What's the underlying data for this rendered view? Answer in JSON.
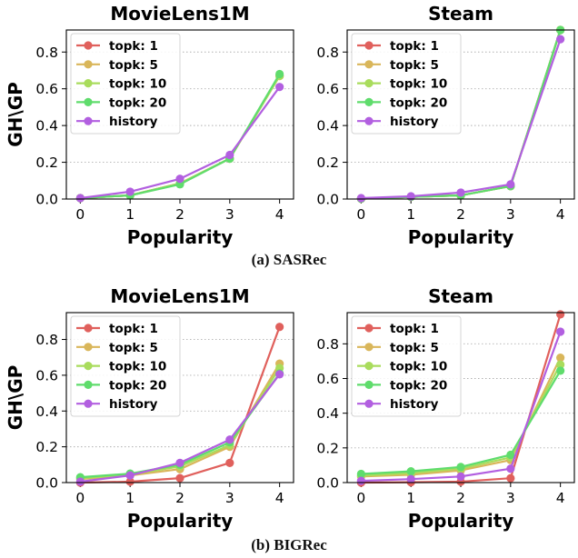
{
  "captions": [
    "(a) SASRec",
    "(b) BIGRec"
  ],
  "colors": {
    "topk: 1": "#e0605c",
    "topk: 5": "#d9b65a",
    "topk: 10": "#a9dc5c",
    "topk: 20": "#5fdc6c",
    "history": "#b25fe0"
  },
  "chart_data": [
    {
      "type": "line",
      "title": "MovieLens1M",
      "xlabel": "Popularity",
      "ylabel": "GH\\GP",
      "x": [
        0,
        1,
        2,
        3,
        4
      ],
      "ylim": [
        0,
        0.92
      ],
      "yticks": [
        0.0,
        0.2,
        0.4,
        0.6,
        0.8
      ],
      "grid": "horizontal dotted",
      "legend": "upper left",
      "series": [
        {
          "name": "topk: 1",
          "values": [
            0.005,
            0.02,
            0.085,
            0.22,
            0.67
          ]
        },
        {
          "name": "topk: 5",
          "values": [
            0.005,
            0.02,
            0.085,
            0.22,
            0.67
          ]
        },
        {
          "name": "topk: 10",
          "values": [
            0.005,
            0.02,
            0.085,
            0.22,
            0.67
          ]
        },
        {
          "name": "topk: 20",
          "values": [
            0.005,
            0.02,
            0.08,
            0.22,
            0.68
          ]
        },
        {
          "name": "history",
          "values": [
            0.005,
            0.04,
            0.11,
            0.24,
            0.61
          ]
        }
      ]
    },
    {
      "type": "line",
      "title": "Steam",
      "xlabel": "Popularity",
      "ylabel": "",
      "x": [
        0,
        1,
        2,
        3,
        4
      ],
      "ylim": [
        0,
        0.92
      ],
      "yticks": [
        0.0,
        0.2,
        0.4,
        0.6,
        0.8
      ],
      "grid": "horizontal dotted",
      "legend": "upper left",
      "series": [
        {
          "name": "topk: 1",
          "values": [
            0.002,
            0.012,
            0.02,
            0.07,
            0.92
          ]
        },
        {
          "name": "topk: 5",
          "values": [
            0.002,
            0.012,
            0.02,
            0.07,
            0.92
          ]
        },
        {
          "name": "topk: 10",
          "values": [
            0.002,
            0.012,
            0.02,
            0.07,
            0.92
          ]
        },
        {
          "name": "topk: 20",
          "values": [
            0.002,
            0.012,
            0.02,
            0.07,
            0.92
          ]
        },
        {
          "name": "history",
          "values": [
            0.005,
            0.015,
            0.035,
            0.08,
            0.87
          ]
        }
      ]
    },
    {
      "type": "line",
      "title": "MovieLens1M",
      "xlabel": "Popularity",
      "ylabel": "GH\\GP",
      "x": [
        0,
        1,
        2,
        3,
        4
      ],
      "ylim": [
        0,
        0.95
      ],
      "yticks": [
        0.0,
        0.2,
        0.4,
        0.6,
        0.8
      ],
      "grid": "horizontal dotted",
      "legend": "upper left",
      "series": [
        {
          "name": "topk: 1",
          "values": [
            0.0,
            0.005,
            0.025,
            0.11,
            0.87
          ]
        },
        {
          "name": "topk: 5",
          "values": [
            0.02,
            0.04,
            0.075,
            0.2,
            0.665
          ]
        },
        {
          "name": "topk: 10",
          "values": [
            0.025,
            0.045,
            0.09,
            0.21,
            0.64
          ]
        },
        {
          "name": "topk: 20",
          "values": [
            0.03,
            0.05,
            0.1,
            0.225,
            0.61
          ]
        },
        {
          "name": "history",
          "values": [
            0.005,
            0.04,
            0.11,
            0.24,
            0.605
          ]
        }
      ]
    },
    {
      "type": "line",
      "title": "Steam",
      "xlabel": "Popularity",
      "ylabel": "",
      "x": [
        0,
        1,
        2,
        3,
        4
      ],
      "ylim": [
        0,
        0.98
      ],
      "yticks": [
        0.0,
        0.2,
        0.4,
        0.6,
        0.8
      ],
      "grid": "horizontal dotted",
      "legend": "upper left",
      "series": [
        {
          "name": "topk: 1",
          "values": [
            0.0,
            0.002,
            0.005,
            0.025,
            0.97
          ]
        },
        {
          "name": "topk: 5",
          "values": [
            0.035,
            0.045,
            0.07,
            0.13,
            0.72
          ]
        },
        {
          "name": "topk: 10",
          "values": [
            0.04,
            0.055,
            0.08,
            0.145,
            0.68
          ]
        },
        {
          "name": "topk: 20",
          "values": [
            0.05,
            0.065,
            0.09,
            0.16,
            0.645
          ]
        },
        {
          "name": "history",
          "values": [
            0.01,
            0.02,
            0.035,
            0.08,
            0.87
          ]
        }
      ]
    }
  ]
}
